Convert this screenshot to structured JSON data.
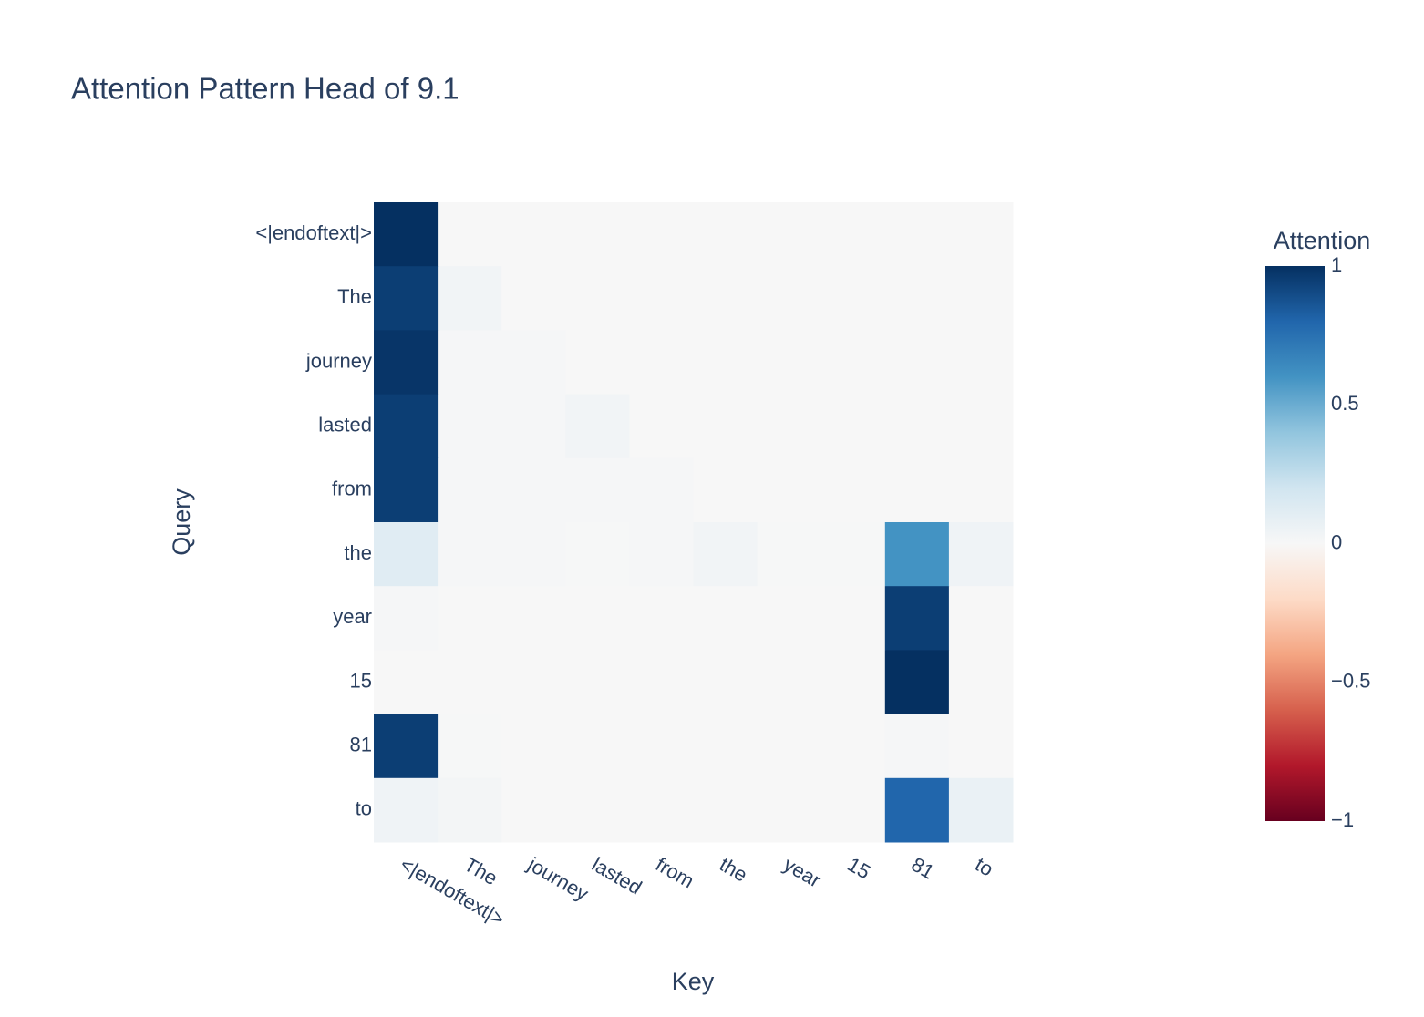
{
  "chart_data": {
    "type": "heatmap",
    "title": "Attention Pattern Head of 9.1",
    "x_label": "Key",
    "y_label": "Query",
    "colorbar_title": "Attention",
    "x": [
      "<|endoftext|>",
      "The",
      "journey",
      "lasted",
      "from",
      "the",
      "year",
      "15",
      "81",
      "to"
    ],
    "y": [
      "<|endoftext|>",
      "The",
      "journey",
      "lasted",
      "from",
      "the",
      "year",
      "15",
      "81",
      "to"
    ],
    "z": [
      [
        1,
        0,
        0,
        0,
        0,
        0,
        0,
        0,
        0,
        0
      ],
      [
        0.95,
        0.03,
        0,
        0,
        0,
        0,
        0,
        0,
        0,
        0
      ],
      [
        0.98,
        0.01,
        0.01,
        0,
        0,
        0,
        0,
        0,
        0,
        0
      ],
      [
        0.95,
        0.01,
        0.01,
        0.03,
        0,
        0,
        0,
        0,
        0,
        0
      ],
      [
        0.95,
        0.01,
        0.01,
        0.01,
        0.01,
        0,
        0,
        0,
        0,
        0
      ],
      [
        0.12,
        0.01,
        0.01,
        0.005,
        0.01,
        0.03,
        0.005,
        0.005,
        0.6,
        0.04
      ],
      [
        0.01,
        0,
        0,
        0,
        0,
        0,
        0,
        0,
        0.95,
        0
      ],
      [
        0,
        0,
        0,
        0,
        0,
        0,
        0,
        0,
        1,
        0
      ],
      [
        0.95,
        0.005,
        0,
        0,
        0,
        0,
        0,
        0,
        0.01,
        0
      ],
      [
        0.04,
        0.02,
        0,
        0,
        0,
        0,
        0,
        0,
        0.8,
        0.07
      ]
    ],
    "zlim": [
      -1,
      1
    ],
    "colorbar_ticks": [
      {
        "value": -1,
        "label": "−1"
      },
      {
        "value": -0.5,
        "label": "−0.5"
      },
      0,
      0.5,
      1
    ],
    "colorscale": [
      "#67001f",
      "#b2182b",
      "#d6604d",
      "#f4a582",
      "#fddbc7",
      "#f7f7f7",
      "#d1e5f0",
      "#92c5de",
      "#4393c3",
      "#2166ac",
      "#053061"
    ]
  }
}
